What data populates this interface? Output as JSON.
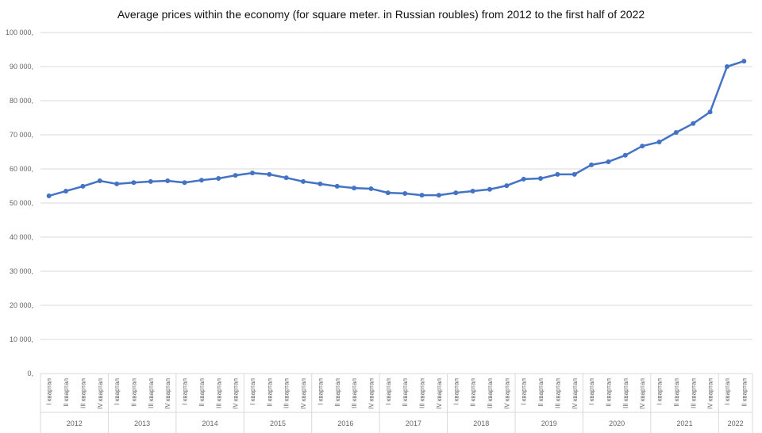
{
  "chart_data": {
    "type": "line",
    "title": "Average prices within the economy (for square meter. in Russian roubles) from 2012 to the first half of 2022",
    "xlabel": "",
    "ylabel": "",
    "ylim": [
      0,
      100000
    ],
    "yticks": [
      0,
      10000,
      20000,
      30000,
      40000,
      50000,
      60000,
      70000,
      80000,
      90000,
      100000
    ],
    "ytick_labels": [
      "0,",
      "10 000,",
      "20 000,",
      "30 000,",
      "40 000,",
      "50 000,",
      "60 000,",
      "70 000,",
      "80 000,",
      "90 000,",
      "100 000,"
    ],
    "grid": true,
    "legend": "none",
    "color": "#4472c4",
    "quarter_labels": [
      "I квартал",
      "II квартал",
      "III квартал",
      "IV квартал"
    ],
    "years": [
      {
        "year": "2012",
        "quarters": 4
      },
      {
        "year": "2013",
        "quarters": 4
      },
      {
        "year": "2014",
        "quarters": 4
      },
      {
        "year": "2015",
        "quarters": 4
      },
      {
        "year": "2016",
        "quarters": 4
      },
      {
        "year": "2017",
        "quarters": 4
      },
      {
        "year": "2018",
        "quarters": 4
      },
      {
        "year": "2019",
        "quarters": 4
      },
      {
        "year": "2020",
        "quarters": 4
      },
      {
        "year": "2021",
        "quarters": 4
      },
      {
        "year": "2022",
        "quarters": 2
      }
    ],
    "values": [
      52100,
      53500,
      54900,
      56500,
      55600,
      56000,
      56300,
      56500,
      56000,
      56700,
      57200,
      58100,
      58800,
      58400,
      57400,
      56300,
      55600,
      54900,
      54400,
      54200,
      53000,
      52800,
      52300,
      52300,
      53000,
      53500,
      54000,
      55100,
      57000,
      57200,
      58400,
      58400,
      61200,
      62100,
      64000,
      66700,
      67900,
      70700,
      73300,
      76700,
      90000,
      91600
    ]
  }
}
